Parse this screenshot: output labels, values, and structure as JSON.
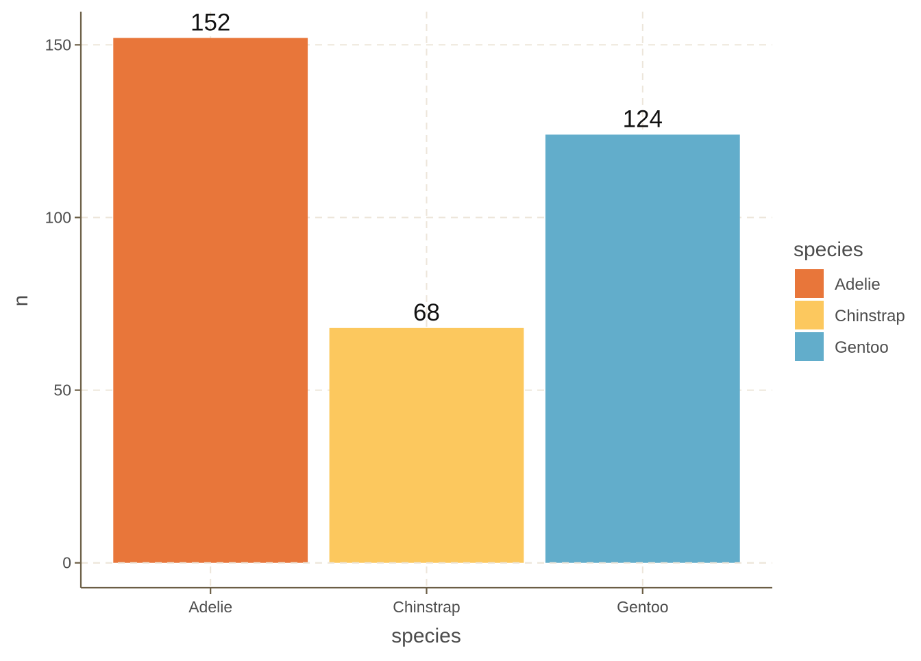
{
  "chart_data": {
    "type": "bar",
    "categories": [
      "Adelie",
      "Chinstrap",
      "Gentoo"
    ],
    "values": [
      152,
      68,
      124
    ],
    "data_labels": [
      "152",
      "68",
      "124"
    ],
    "colors": [
      "#E8763A",
      "#FCC85E",
      "#62ADCB"
    ],
    "title": "",
    "xlabel": "species",
    "ylabel": "n",
    "ylim": [
      -7.2,
      159.6
    ],
    "yticks": [
      0,
      50,
      100,
      150
    ],
    "ytick_labels": [
      "0",
      "50",
      "100",
      "150"
    ],
    "grid": "dashed major gridlines (x and y)",
    "grid_color": "#EDE6DA",
    "axis_color": "#6B5E45",
    "legend": {
      "title": "species",
      "position": "right",
      "entries": [
        "Adelie",
        "Chinstrap",
        "Gentoo"
      ]
    }
  }
}
